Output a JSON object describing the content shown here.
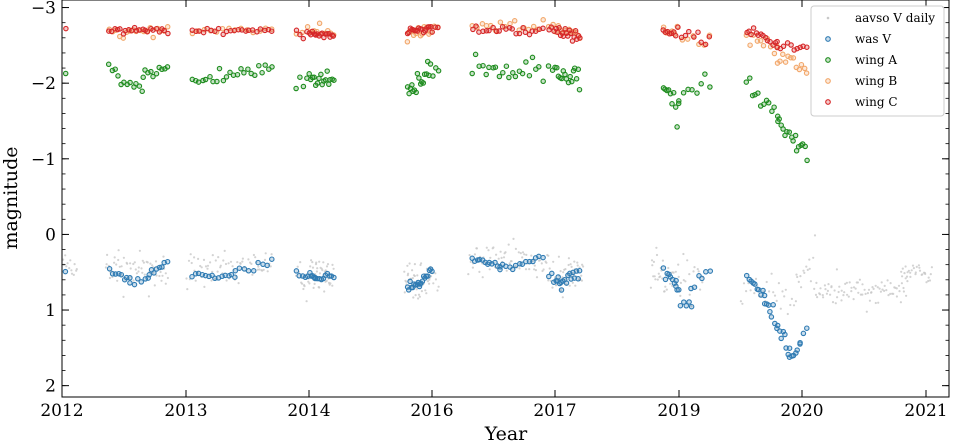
{
  "chart_data": {
    "type": "scatter",
    "title": "",
    "xlabel": "Year",
    "ylabel": "magnitude",
    "x_tick_labels": [
      "2012",
      "2013",
      "2014",
      "2016",
      "2017",
      "2019",
      "2020",
      "2021"
    ],
    "y_ticks": [
      -3,
      -2,
      -1,
      0,
      1,
      2
    ],
    "y_tick_labels": [
      "−3",
      "−2",
      "−1",
      "0",
      "1",
      "2"
    ],
    "ylim": [
      2.15,
      -3.1
    ],
    "y_inverted": true,
    "grid": false,
    "legend_position": "top-right",
    "series": [
      {
        "name": "aavso V daily",
        "color": "#c8c8c8",
        "marker": "dot",
        "segments": [
          {
            "xr": [
              2012.0,
              2012.12
            ],
            "m": [
              0.5,
              0.5
            ],
            "sd": 0.13,
            "n": 14
          },
          {
            "xr": [
              2012.35,
              2012.85
            ],
            "m": [
              0.45,
              0.45
            ],
            "sd": 0.13,
            "n": 60
          },
          {
            "xr": [
              2013.0,
              2013.7
            ],
            "m": [
              0.5,
              0.45
            ],
            "sd": 0.12,
            "n": 70
          },
          {
            "xr": [
              2013.9,
              2014.4
            ],
            "m": [
              0.55,
              0.55
            ],
            "sd": 0.12,
            "n": 60
          },
          {
            "xr": [
              2015.55,
              2016.05
            ],
            "m": [
              0.6,
              0.55
            ],
            "sd": 0.12,
            "n": 55
          },
          {
            "xr": [
              2016.3,
              2016.95
            ],
            "m": [
              0.35,
              0.35
            ],
            "sd": 0.12,
            "n": 70
          },
          {
            "xr": [
              2016.95,
              2017.45
            ],
            "m": [
              0.55,
              0.55
            ],
            "sd": 0.12,
            "n": 55
          },
          {
            "xr": [
              2018.55,
              2019.2
            ],
            "m": [
              0.5,
              0.6
            ],
            "sd": 0.13,
            "n": 55
          },
          {
            "xr": [
              2019.5,
              2019.95
            ],
            "m": [
              0.7,
              0.9
            ],
            "sd": 0.12,
            "n": 30
          },
          {
            "xr": [
              2019.95,
              2020.1
            ],
            "m": [
              0.6,
              0.3
            ],
            "sd": 0.12,
            "n": 14
          },
          {
            "xr": [
              2020.1,
              2020.85
            ],
            "m": [
              0.75,
              0.75
            ],
            "sd": 0.09,
            "n": 85
          },
          {
            "xr": [
              2020.8,
              2021.05
            ],
            "m": [
              0.5,
              0.5
            ],
            "sd": 0.08,
            "n": 30
          }
        ]
      },
      {
        "name": "was V",
        "color": "#2f7bb3",
        "marker": "circle",
        "segments": [
          {
            "xr": [
              2012.0,
              2012.03
            ],
            "m": [
              0.5,
              0.5
            ],
            "sd": 0.02,
            "n": 2
          },
          {
            "xr": [
              2012.38,
              2012.55
            ],
            "m": [
              0.48,
              0.6
            ],
            "sd": 0.03,
            "n": 8
          },
          {
            "xr": [
              2012.55,
              2012.7
            ],
            "m": [
              0.62,
              0.62
            ],
            "sd": 0.03,
            "n": 6
          },
          {
            "xr": [
              2012.7,
              2012.85
            ],
            "m": [
              0.55,
              0.4
            ],
            "sd": 0.03,
            "n": 8
          },
          {
            "xr": [
              2013.05,
              2013.4
            ],
            "m": [
              0.55,
              0.55
            ],
            "sd": 0.02,
            "n": 14
          },
          {
            "xr": [
              2013.4,
              2013.7
            ],
            "m": [
              0.5,
              0.38
            ],
            "sd": 0.03,
            "n": 9
          },
          {
            "xr": [
              2013.9,
              2014.1
            ],
            "m": [
              0.52,
              0.58
            ],
            "sd": 0.03,
            "n": 10
          },
          {
            "xr": [
              2014.1,
              2014.4
            ],
            "m": [
              0.6,
              0.52
            ],
            "sd": 0.03,
            "n": 10
          },
          {
            "xr": [
              2015.6,
              2015.8
            ],
            "m": [
              0.7,
              0.68
            ],
            "sd": 0.04,
            "n": 10
          },
          {
            "xr": [
              2015.8,
              2016.0
            ],
            "m": [
              0.62,
              0.48
            ],
            "sd": 0.04,
            "n": 10
          },
          {
            "xr": [
              2016.33,
              2016.55
            ],
            "m": [
              0.32,
              0.42
            ],
            "sd": 0.03,
            "n": 12
          },
          {
            "xr": [
              2016.55,
              2016.9
            ],
            "m": [
              0.45,
              0.3
            ],
            "sd": 0.03,
            "n": 14
          },
          {
            "xr": [
              2016.95,
              2017.1
            ],
            "m": [
              0.55,
              0.65
            ],
            "sd": 0.04,
            "n": 8
          },
          {
            "xr": [
              2017.1,
              2017.4
            ],
            "m": [
              0.62,
              0.5
            ],
            "sd": 0.04,
            "n": 12
          },
          {
            "xr": [
              2018.75,
              2018.95
            ],
            "m": [
              0.5,
              0.65
            ],
            "sd": 0.04,
            "n": 8
          },
          {
            "xr": [
              2018.95,
              2019.1
            ],
            "m": [
              0.75,
              0.9
            ],
            "sd": 0.05,
            "n": 8
          },
          {
            "xr": [
              2019.1,
              2019.25
            ],
            "m": [
              0.7,
              0.45
            ],
            "sd": 0.04,
            "n": 6
          },
          {
            "xr": [
              2019.55,
              2019.7
            ],
            "m": [
              0.6,
              0.8
            ],
            "sd": 0.04,
            "n": 10
          },
          {
            "xr": [
              2019.7,
              2019.9
            ],
            "m": [
              0.85,
              1.55
            ],
            "sd": 0.05,
            "n": 16
          },
          {
            "xr": [
              2019.9,
              2019.98
            ],
            "m": [
              1.6,
              1.5
            ],
            "sd": 0.03,
            "n": 6
          },
          {
            "xr": [
              2019.98,
              2020.04
            ],
            "m": [
              1.4,
              1.25
            ],
            "sd": 0.03,
            "n": 3
          }
        ]
      },
      {
        "name": "wing A",
        "color": "#1e8c1e",
        "marker": "circle",
        "segments": [
          {
            "xr": [
              2012.0,
              2012.03
            ],
            "m": [
              -2.1,
              -2.1
            ],
            "sd": 0.03,
            "n": 2
          },
          {
            "xr": [
              2012.38,
              2012.65
            ],
            "m": [
              -2.1,
              -1.97
            ],
            "sd": 0.05,
            "n": 12
          },
          {
            "xr": [
              2012.65,
              2012.85
            ],
            "m": [
              -2.05,
              -2.22
            ],
            "sd": 0.05,
            "n": 10
          },
          {
            "xr": [
              2013.05,
              2013.7
            ],
            "m": [
              -2.02,
              -2.2
            ],
            "sd": 0.05,
            "n": 24
          },
          {
            "xr": [
              2013.9,
              2014.4
            ],
            "m": [
              -2.05,
              -2.05
            ],
            "sd": 0.06,
            "n": 20
          },
          {
            "xr": [
              2015.6,
              2016.05
            ],
            "m": [
              -1.88,
              -2.2
            ],
            "sd": 0.07,
            "n": 20
          },
          {
            "xr": [
              2016.33,
              2016.9
            ],
            "m": [
              -2.2,
              -2.22
            ],
            "sd": 0.09,
            "n": 22
          },
          {
            "xr": [
              2016.95,
              2017.4
            ],
            "m": [
              -2.15,
              -2.05
            ],
            "sd": 0.08,
            "n": 18
          },
          {
            "xr": [
              2018.75,
              2019.0
            ],
            "m": [
              -2.0,
              -1.6
            ],
            "sd": 0.1,
            "n": 10
          },
          {
            "xr": [
              2019.0,
              2019.25
            ],
            "m": [
              -1.75,
              -2.05
            ],
            "sd": 0.1,
            "n": 8
          },
          {
            "xr": [
              2019.55,
              2019.8
            ],
            "m": [
              -1.95,
              -1.6
            ],
            "sd": 0.06,
            "n": 12
          },
          {
            "xr": [
              2019.8,
              2020.04
            ],
            "m": [
              -1.5,
              -1.1
            ],
            "sd": 0.07,
            "n": 16
          }
        ]
      },
      {
        "name": "wing B",
        "color": "#f2a76a",
        "marker": "circle",
        "segments": [
          {
            "xr": [
              2012.38,
              2012.85
            ],
            "m": [
              -2.68,
              -2.7
            ],
            "sd": 0.04,
            "n": 18
          },
          {
            "xr": [
              2013.05,
              2013.7
            ],
            "m": [
              -2.7,
              -2.7
            ],
            "sd": 0.03,
            "n": 14
          },
          {
            "xr": [
              2013.9,
              2014.4
            ],
            "m": [
              -2.68,
              -2.65
            ],
            "sd": 0.04,
            "n": 12
          },
          {
            "xr": [
              2015.6,
              2016.05
            ],
            "m": [
              -2.6,
              -2.75
            ],
            "sd": 0.08,
            "n": 14
          },
          {
            "xr": [
              2016.33,
              2016.9
            ],
            "m": [
              -2.78,
              -2.75
            ],
            "sd": 0.05,
            "n": 16
          },
          {
            "xr": [
              2016.95,
              2017.4
            ],
            "m": [
              -2.75,
              -2.65
            ],
            "sd": 0.05,
            "n": 14
          },
          {
            "xr": [
              2018.75,
              2019.25
            ],
            "m": [
              -2.72,
              -2.55
            ],
            "sd": 0.06,
            "n": 12
          },
          {
            "xr": [
              2019.55,
              2019.8
            ],
            "m": [
              -2.65,
              -2.45
            ],
            "sd": 0.06,
            "n": 10
          },
          {
            "xr": [
              2019.8,
              2020.04
            ],
            "m": [
              -2.35,
              -2.2
            ],
            "sd": 0.06,
            "n": 12
          }
        ]
      },
      {
        "name": "wing C",
        "color": "#d62728",
        "marker": "circle",
        "segments": [
          {
            "xr": [
              2012.0,
              2012.03
            ],
            "m": [
              -2.7,
              -2.7
            ],
            "sd": 0.02,
            "n": 2
          },
          {
            "xr": [
              2012.38,
              2012.85
            ],
            "m": [
              -2.7,
              -2.7
            ],
            "sd": 0.02,
            "n": 22
          },
          {
            "xr": [
              2013.05,
              2013.7
            ],
            "m": [
              -2.7,
              -2.7
            ],
            "sd": 0.02,
            "n": 22
          },
          {
            "xr": [
              2013.9,
              2014.4
            ],
            "m": [
              -2.65,
              -2.65
            ],
            "sd": 0.03,
            "n": 20
          },
          {
            "xr": [
              2015.6,
              2016.05
            ],
            "m": [
              -2.68,
              -2.72
            ],
            "sd": 0.04,
            "n": 20
          },
          {
            "xr": [
              2016.33,
              2016.9
            ],
            "m": [
              -2.72,
              -2.68
            ],
            "sd": 0.03,
            "n": 22
          },
          {
            "xr": [
              2016.95,
              2017.4
            ],
            "m": [
              -2.7,
              -2.65
            ],
            "sd": 0.04,
            "n": 20
          },
          {
            "xr": [
              2018.75,
              2019.25
            ],
            "m": [
              -2.7,
              -2.6
            ],
            "sd": 0.05,
            "n": 16
          },
          {
            "xr": [
              2019.55,
              2019.8
            ],
            "m": [
              -2.7,
              -2.55
            ],
            "sd": 0.04,
            "n": 14
          },
          {
            "xr": [
              2019.8,
              2020.04
            ],
            "m": [
              -2.5,
              -2.45
            ],
            "sd": 0.03,
            "n": 10
          }
        ]
      }
    ]
  }
}
